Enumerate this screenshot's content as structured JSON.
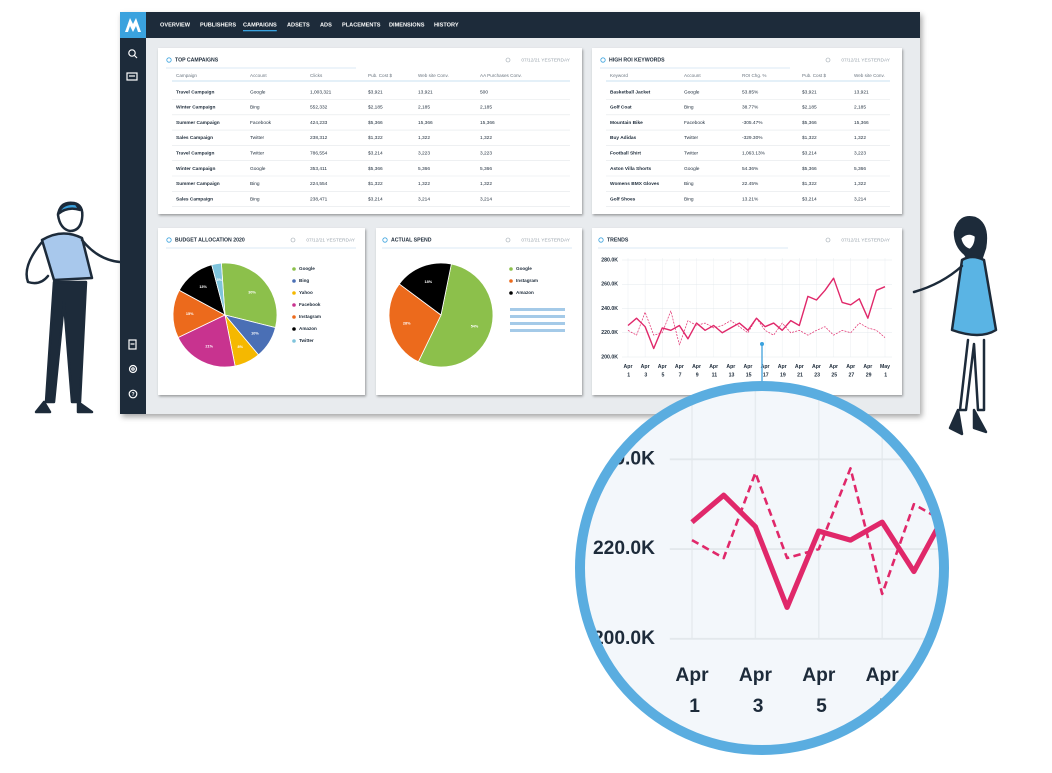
{
  "dashboard": {
    "nav": [
      "OVERVIEW",
      "PUBLISHERS",
      "CAMPAIGNS",
      "ADSETS",
      "ADS",
      "PLACEMENTS",
      "DIMENSIONS",
      "HISTORY"
    ],
    "active_nav": 2,
    "top_campaigns": {
      "title": "TOP CAMPAIGNS",
      "date": "07/12/21 YESTERDAY",
      "columns": [
        "Campaign",
        "Account",
        "Clicks",
        "Pub. Cost $",
        "Web site Conv.",
        "AA Purchases Conv."
      ],
      "rows": [
        [
          "Travel Campaign",
          "Google",
          "1,003,321",
          "$3,921",
          "13,921",
          "500"
        ],
        [
          "Winter Campaign",
          "Bing",
          "552,332",
          "$2,185",
          "2,185",
          "2,185"
        ],
        [
          "Summer Campaign",
          "Facebook",
          "424,233",
          "$5,366",
          "15,366",
          "15,366"
        ],
        [
          "Sales Campaign",
          "Twitter",
          "238,312",
          "$1,322",
          "1,322",
          "1,322"
        ],
        [
          "Travel Campaign",
          "Twitter",
          "786,554",
          "$3,214",
          "3,223",
          "3,223"
        ],
        [
          "Winter Campaign",
          "Google",
          "353,411",
          "$5,366",
          "5,366",
          "5,366"
        ],
        [
          "Summer Campaign",
          "Bing",
          "224,554",
          "$1,322",
          "1,322",
          "1,322"
        ],
        [
          "Sales Campaign",
          "Bing",
          "238,471",
          "$3,214",
          "3,214",
          "3,214"
        ]
      ]
    },
    "high_roi_keywords": {
      "title": "HIGH ROI KEYWORDS",
      "date": "07/12/21 YESTERDAY",
      "columns": [
        "Keyword",
        "Account",
        "ROI Chg. %",
        "Pub. Cost $",
        "Web site Conv."
      ],
      "rows": [
        [
          "Basketball Jacket",
          "Google",
          "53.85%",
          "$3,921",
          "13,921"
        ],
        [
          "Golf Coat",
          "Bing",
          "38.77%",
          "$2,185",
          "2,185"
        ],
        [
          "Mountain Bike",
          "Facebook",
          "-305.47%",
          "$5,366",
          "15,366"
        ],
        [
          "Buy Adidas",
          "Twitter",
          "-329.30%",
          "$1,322",
          "1,322"
        ],
        [
          "Football Shirt",
          "Twitter",
          "1,063.13%",
          "$3,214",
          "3,223"
        ],
        [
          "Aston Villa Shorts",
          "Google",
          "54.36%",
          "$5,366",
          "5,366"
        ],
        [
          "Womens BMX Gloves",
          "Bing",
          "22.45%",
          "$1,322",
          "1,322"
        ],
        [
          "Golf Shoes",
          "Bing",
          "13.21%",
          "$3,214",
          "3,214"
        ]
      ]
    }
  },
  "chart_data": [
    {
      "type": "pie",
      "title": "BUDGET ALLOCATION 2020",
      "date": "07/12/21 YESTERDAY",
      "categories": [
        "Google",
        "Bing",
        "Yahoo",
        "Facebook",
        "Instagram",
        "Amazon",
        "Twitter"
      ],
      "values": [
        30,
        10,
        8,
        21,
        15,
        13,
        3
      ],
      "value_labels": [
        "30%",
        "10%",
        "8%",
        "21%",
        "15%",
        "13%",
        "3%"
      ],
      "colors": [
        "#8cc04b",
        "#4a6fb5",
        "#f5b800",
        "#c8338f",
        "#ec6a1c",
        "#000000",
        "#7fc4dc"
      ]
    },
    {
      "type": "pie",
      "title": "ACTUAL SPEND",
      "date": "07/12/21 YESTERDAY",
      "categories": [
        "Google",
        "Instagram",
        "Amazon"
      ],
      "values": [
        54,
        28,
        18
      ],
      "value_labels": [
        "54%",
        "28%",
        "18%"
      ],
      "colors": [
        "#8cc04b",
        "#ec6a1c",
        "#000000"
      ]
    },
    {
      "type": "line",
      "title": "TRENDS",
      "date": "07/12/21 YESTERDAY",
      "categories": [
        "Apr 1",
        null,
        "Apr 3",
        null,
        "Apr 5",
        null,
        "Apr 7",
        null,
        "Apr 9",
        null,
        "Apr 11",
        null,
        "Apr 13",
        null,
        "Apr 15",
        null,
        "Apr 17",
        null,
        "Apr 19",
        null,
        "Apr 21",
        null,
        "Apr 23",
        null,
        "Apr 25",
        null,
        "Apr 27",
        null,
        "Apr 29",
        null,
        "May 1"
      ],
      "series": [
        {
          "color": "#e0286a",
          "dash": false,
          "values": [
            226000,
            232000,
            225000,
            207000,
            224000,
            222000,
            226000,
            215000,
            228000,
            222000,
            226000,
            220000,
            224000,
            228000,
            222000,
            232000,
            225000,
            228000,
            222000,
            230000,
            226000,
            250000,
            247000,
            255000,
            265000,
            245000,
            243000,
            248000,
            232000,
            255000,
            258000
          ]
        },
        {
          "color": "#e0286a",
          "dash": true,
          "values": [
            222000,
            218000,
            237000,
            218000,
            220000,
            238000,
            210000,
            230000,
            226000,
            228000,
            224000,
            226000,
            230000,
            225000,
            220000,
            232000,
            222000,
            218000,
            228000,
            220000,
            222000,
            218000,
            222000,
            225000,
            218000,
            222000,
            220000,
            228000,
            224000,
            222000,
            216000
          ]
        }
      ],
      "ylim": [
        200000,
        280000
      ],
      "yticks": [
        {
          "value": 200000,
          "label": "200.0K"
        },
        {
          "value": 220000,
          "label": "220.0K"
        },
        {
          "value": 240000,
          "label": "240.0K"
        },
        {
          "value": 260000,
          "label": "260.0K"
        },
        {
          "value": 280000,
          "label": "280.0K"
        }
      ],
      "grid": true
    }
  ]
}
